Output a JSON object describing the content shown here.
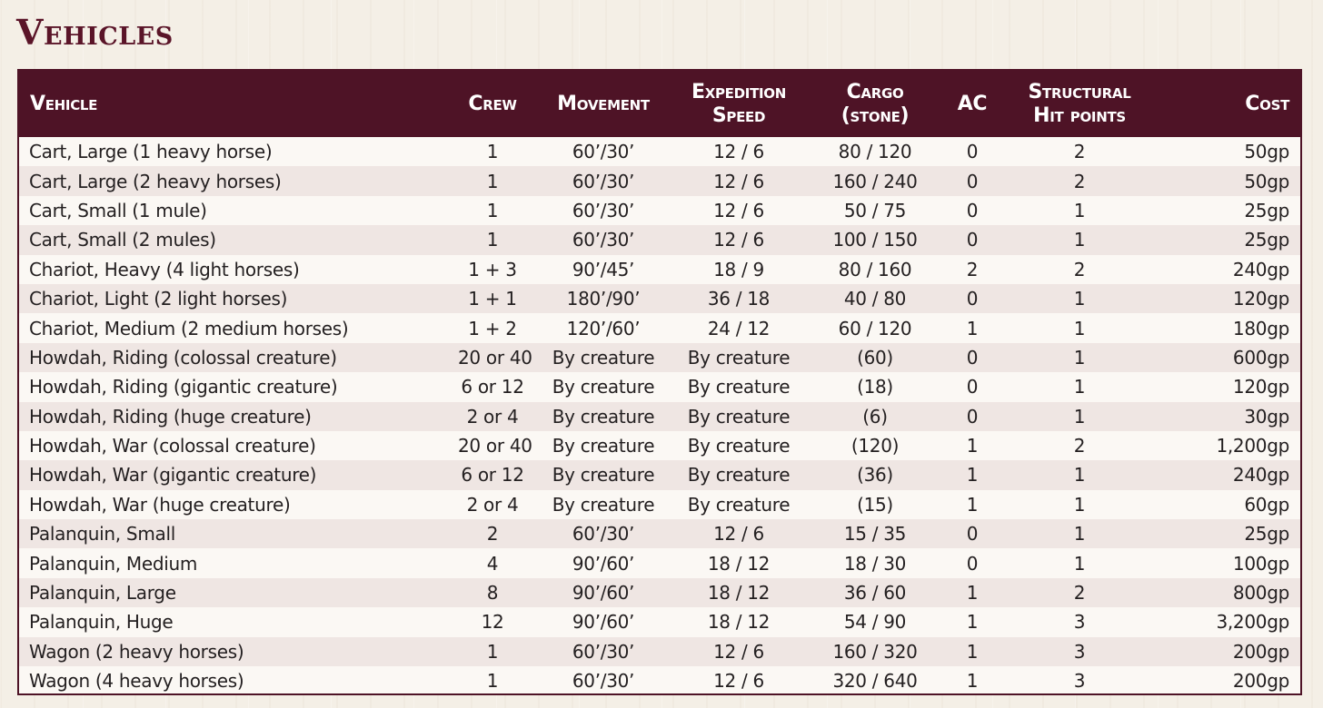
{
  "title": "Vehicles",
  "headers": {
    "vehicle": "Vehicle",
    "crew": "Crew",
    "movement": "Movement",
    "expedition_speed": [
      "Expedition",
      "Speed"
    ],
    "cargo": [
      "Cargo",
      "(stone)"
    ],
    "ac": "AC",
    "structural_hp": [
      "Structural",
      "Hit points"
    ],
    "cost": "Cost"
  },
  "rows": [
    {
      "vehicle": "Cart, Large (1 heavy horse)",
      "crew": "1",
      "movement": "60’/30’",
      "speed": "12 / 6",
      "cargo": "80 / 120",
      "ac": "0",
      "shp": "2",
      "cost": "50gp"
    },
    {
      "vehicle": "Cart, Large (2 heavy horses)",
      "crew": "1",
      "movement": "60’/30’",
      "speed": "12 / 6",
      "cargo": "160 / 240",
      "ac": "0",
      "shp": "2",
      "cost": "50gp"
    },
    {
      "vehicle": "Cart, Small (1 mule)",
      "crew": "1",
      "movement": "60’/30’",
      "speed": "12 / 6",
      "cargo": "50 / 75",
      "ac": "0",
      "shp": "1",
      "cost": "25gp"
    },
    {
      "vehicle": "Cart, Small (2 mules)",
      "crew": "1",
      "movement": "60’/30’",
      "speed": "12 / 6",
      "cargo": "100 / 150",
      "ac": "0",
      "shp": "1",
      "cost": "25gp"
    },
    {
      "vehicle": "Chariot, Heavy (4 light horses)",
      "crew": "1 + 3",
      "movement": "90’/45’",
      "speed": "18 / 9",
      "cargo": "80 / 160",
      "ac": "2",
      "shp": "2",
      "cost": "240gp"
    },
    {
      "vehicle": "Chariot, Light (2 light horses)",
      "crew": "1 + 1",
      "movement": "180’/90’",
      "speed": "36 / 18",
      "cargo": "40 / 80",
      "ac": "0",
      "shp": "1",
      "cost": "120gp"
    },
    {
      "vehicle": "Chariot, Medium (2 medium horses)",
      "crew": "1 + 2",
      "movement": "120’/60’",
      "speed": "24 / 12",
      "cargo": "60 / 120",
      "ac": "1",
      "shp": "1",
      "cost": "180gp"
    },
    {
      "vehicle": "Howdah, Riding (colossal creature)",
      "crew": "20 or 40",
      "movement": "By creature",
      "speed": "By creature",
      "cargo": "(60)",
      "ac": "0",
      "shp": "1",
      "cost": "600gp"
    },
    {
      "vehicle": "Howdah, Riding (gigantic creature)",
      "crew": "6 or 12",
      "movement": "By creature",
      "speed": "By creature",
      "cargo": "(18)",
      "ac": "0",
      "shp": "1",
      "cost": "120gp"
    },
    {
      "vehicle": "Howdah, Riding (huge creature)",
      "crew": "2 or 4",
      "movement": "By creature",
      "speed": "By creature",
      "cargo": "(6)",
      "ac": "0",
      "shp": "1",
      "cost": "30gp"
    },
    {
      "vehicle": "Howdah, War (colossal creature)",
      "crew": "20 or 40",
      "movement": "By creature",
      "speed": "By creature",
      "cargo": "(120)",
      "ac": "1",
      "shp": "2",
      "cost": "1,200gp"
    },
    {
      "vehicle": "Howdah, War (gigantic creature)",
      "crew": "6 or 12",
      "movement": "By creature",
      "speed": "By creature",
      "cargo": "(36)",
      "ac": "1",
      "shp": "1",
      "cost": "240gp"
    },
    {
      "vehicle": "Howdah, War (huge creature)",
      "crew": "2 or 4",
      "movement": "By creature",
      "speed": "By creature",
      "cargo": "(15)",
      "ac": "1",
      "shp": "1",
      "cost": "60gp"
    },
    {
      "vehicle": "Palanquin, Small",
      "crew": "2",
      "movement": "60’/30’",
      "speed": "12 / 6",
      "cargo": "15 / 35",
      "ac": "0",
      "shp": "1",
      "cost": "25gp"
    },
    {
      "vehicle": "Palanquin, Medium",
      "crew": "4",
      "movement": "90’/60’",
      "speed": "18 / 12",
      "cargo": "18 / 30",
      "ac": "0",
      "shp": "1",
      "cost": "100gp"
    },
    {
      "vehicle": "Palanquin, Large",
      "crew": "8",
      "movement": "90’/60’",
      "speed": "18 / 12",
      "cargo": "36 / 60",
      "ac": "1",
      "shp": "2",
      "cost": "800gp"
    },
    {
      "vehicle": "Palanquin, Huge",
      "crew": "12",
      "movement": "90’/60’",
      "speed": "18 / 12",
      "cargo": "54 / 90",
      "ac": "1",
      "shp": "3",
      "cost": "3,200gp"
    },
    {
      "vehicle": "Wagon (2 heavy horses)",
      "crew": "1",
      "movement": "60’/30’",
      "speed": "12 / 6",
      "cargo": "160 / 320",
      "ac": "1",
      "shp": "3",
      "cost": "200gp"
    },
    {
      "vehicle": "Wagon (4 heavy horses)",
      "crew": "1",
      "movement": "60’/30’",
      "speed": "12 / 6",
      "cargo": "320 / 640",
      "ac": "1",
      "shp": "3",
      "cost": "200gp"
    }
  ],
  "colors": {
    "accent": "#4e1326",
    "title": "#5a1428",
    "row_alt": "#efe6e3",
    "row": "#fbf8f4",
    "background": "#f4efe6"
  }
}
